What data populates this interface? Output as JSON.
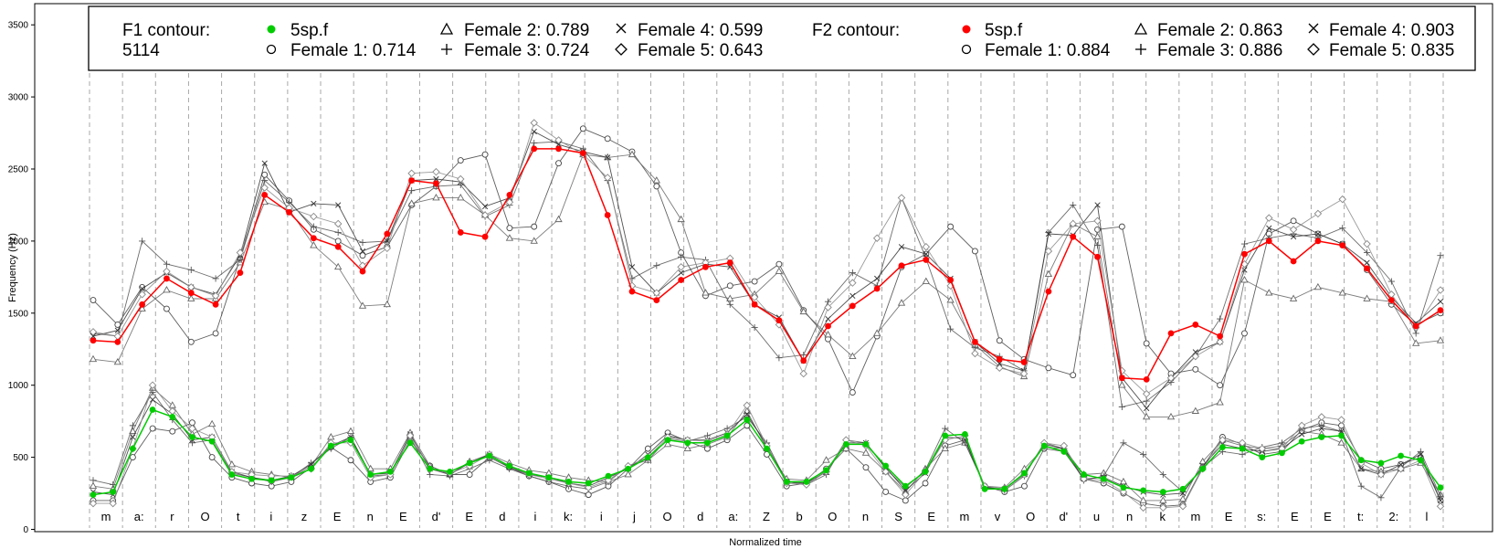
{
  "chart_data": {
    "type": "line",
    "xlabel": "Normalized time",
    "ylabel": "Frequency (Hz)",
    "ylim": [
      0,
      3600
    ],
    "yticks": [
      0,
      500,
      1000,
      1500,
      2000,
      2500,
      3000,
      3500
    ],
    "grid": "vertical dashed segment boundaries",
    "legend_position": "top",
    "segments": [
      "m",
      "a:",
      "r",
      "O",
      "t",
      "i",
      "z",
      "E",
      "n",
      "E",
      "d'",
      "E",
      "d",
      "i",
      "k:",
      "i",
      "j",
      "O",
      "d",
      "a:",
      "Z",
      "b",
      "O",
      "n",
      "S",
      "E",
      "m",
      "v",
      "O",
      "d'",
      "u",
      "n",
      "k",
      "m",
      "E",
      "s:",
      "E",
      "E",
      "t:",
      "2:",
      "l"
    ],
    "legend": {
      "f1_title": "F1 contour:",
      "f1_subtitle": "5114",
      "f1_entries": [
        {
          "marker": "filled-circle-green",
          "label": "5sp.f"
        },
        {
          "marker": "triangle",
          "label": "Female 2: 0.789"
        },
        {
          "marker": "x",
          "label": "Female 4: 0.599"
        },
        {
          "marker": "circle",
          "label": "Female 1: 0.714"
        },
        {
          "marker": "plus",
          "label": "Female 3: 0.724"
        },
        {
          "marker": "diamond",
          "label": "Female 5: 0.643"
        }
      ],
      "f2_title": "F2 contour:",
      "f2_entries": [
        {
          "marker": "filled-circle-red",
          "label": "5sp.f"
        },
        {
          "marker": "triangle",
          "label": "Female 2: 0.863"
        },
        {
          "marker": "x",
          "label": "Female 4: 0.903"
        },
        {
          "marker": "circle",
          "label": "Female 1: 0.884"
        },
        {
          "marker": "plus",
          "label": "Female 3: 0.886"
        },
        {
          "marker": "diamond",
          "label": "Female 5: 0.835"
        }
      ]
    },
    "series": [
      {
        "name": "F2 5sp.f",
        "color": "#ff0000",
        "values": [
          1310,
          1300,
          1560,
          1740,
          1640,
          1560,
          1780,
          2320,
          2200,
          2020,
          1960,
          1790,
          2050,
          2420,
          2400,
          2060,
          2030,
          2320,
          2640,
          2640,
          2610,
          2180,
          1650,
          1590,
          1730,
          1820,
          1850,
          1560,
          1450,
          1170,
          1410,
          1550,
          1670,
          1830,
          1870,
          1730,
          1300,
          1180,
          1160,
          1650,
          2030,
          1890,
          1050,
          1040,
          1360,
          1420,
          1340,
          1910,
          2000,
          1860,
          2000,
          1970,
          1810,
          1590,
          1410,
          1520
        ]
      },
      {
        "name": "F1 5sp.f",
        "color": "#00cc00",
        "values": [
          240,
          260,
          560,
          830,
          780,
          640,
          610,
          380,
          350,
          340,
          360,
          420,
          580,
          620,
          380,
          400,
          600,
          420,
          400,
          460,
          510,
          440,
          390,
          360,
          330,
          320,
          370,
          420,
          500,
          620,
          600,
          600,
          650,
          760,
          560,
          330,
          330,
          410,
          590,
          590,
          440,
          300,
          400,
          650,
          660,
          280,
          280,
          390,
          580,
          540,
          380,
          350,
          290,
          270,
          260,
          280,
          420,
          570,
          560,
          500,
          530,
          610,
          640,
          650,
          480,
          460,
          510,
          480,
          290
        ]
      },
      {
        "name": "F2 Female 1",
        "color": "#444444",
        "values": [
          1590,
          1420,
          1680,
          1530,
          1300,
          1360,
          1880,
          2460,
          2280,
          2080,
          2000,
          1900,
          1960,
          2250,
          2380,
          2560,
          2600,
          2090,
          2100,
          2540,
          2780,
          2710,
          2620,
          2380,
          1920,
          1620,
          1690,
          1720,
          1840,
          1520,
          1320,
          950,
          1340,
          1820,
          1910,
          2100,
          1930,
          1310,
          1180,
          1120,
          1070,
          2080,
          2100,
          1290,
          1080,
          1110,
          1000,
          1360,
          2050,
          2140,
          2050,
          1980,
          1800,
          1560,
          1420,
          1500
        ]
      },
      {
        "name": "F2 Female 2",
        "color": "#666666",
        "values": [
          1180,
          1160,
          1530,
          1660,
          1600,
          1600,
          1850,
          2270,
          2220,
          1970,
          1820,
          1550,
          1560,
          2260,
          2300,
          2300,
          2180,
          2020,
          2000,
          2150,
          2600,
          2580,
          2600,
          2420,
          2150,
          1640,
          1600,
          1630,
          1790,
          1510,
          1350,
          1200,
          1360,
          1570,
          1720,
          1590,
          1280,
          1130,
          1060,
          1770,
          2120,
          2030,
          1000,
          780,
          780,
          820,
          880,
          1730,
          1640,
          1600,
          1680,
          1640,
          1600,
          1580,
          1290,
          1310
        ]
      },
      {
        "name": "F2 Female 3",
        "color": "#555555",
        "values": [
          1360,
          1340,
          2000,
          1840,
          1800,
          1740,
          1870,
          2420,
          2270,
          2100,
          2060,
          1990,
          2000,
          2350,
          2380,
          2390,
          2170,
          2250,
          2680,
          2690,
          2640,
          2420,
          1740,
          1830,
          1890,
          1870,
          1560,
          1400,
          1190,
          1210,
          1580,
          1780,
          1690,
          2300,
          1880,
          1390,
          1260,
          1200,
          1100,
          2060,
          2250,
          1970,
          850,
          890,
          1020,
          1200,
          1460,
          1980,
          2020,
          2050,
          2020,
          2090,
          1920,
          1720,
          1360,
          1900
        ]
      },
      {
        "name": "F2 Female 4",
        "color": "#333333",
        "values": [
          1340,
          1380,
          1670,
          1780,
          1680,
          1630,
          1900,
          2540,
          2200,
          2260,
          2250,
          1930,
          2000,
          2420,
          2430,
          2410,
          2240,
          2300,
          2760,
          2670,
          2620,
          2580,
          1820,
          1640,
          1780,
          1840,
          1820,
          1560,
          1470,
          1170,
          1460,
          1620,
          1740,
          1960,
          1910,
          1740,
          1300,
          1150,
          1100,
          2050,
          2040,
          2250,
          1050,
          840,
          1050,
          1230,
          1300,
          1800,
          2090,
          2030,
          2050,
          1980,
          1850,
          1610,
          1430,
          1580
        ]
      },
      {
        "name": "F2 Female 5",
        "color": "#888888",
        "values": [
          1370,
          1340,
          1630,
          1790,
          1680,
          1620,
          1920,
          2370,
          2230,
          2170,
          2120,
          1830,
          1950,
          2470,
          2480,
          2430,
          2180,
          2270,
          2820,
          2700,
          2600,
          2440,
          1690,
          1640,
          1820,
          1850,
          1880,
          1610,
          1420,
          1080,
          1540,
          1710,
          2020,
          2300,
          1960,
          1690,
          1220,
          1120,
          1080,
          1930,
          2120,
          2140,
          1100,
          940,
          1050,
          1200,
          1300,
          1840,
          2160,
          2080,
          2190,
          2290,
          1980,
          1630,
          1400,
          1660
        ]
      },
      {
        "name": "F1 Female 1",
        "color": "#444444",
        "values": [
          200,
          200,
          500,
          700,
          680,
          740,
          500,
          360,
          320,
          300,
          330,
          430,
          570,
          480,
          330,
          360,
          620,
          440,
          380,
          380,
          500,
          430,
          370,
          330,
          280,
          240,
          300,
          420,
          560,
          670,
          610,
          560,
          620,
          720,
          520,
          300,
          320,
          420,
          560,
          430,
          260,
          200,
          320,
          580,
          620,
          300,
          260,
          300,
          560,
          540,
          350,
          320,
          250,
          180,
          160,
          170,
          430,
          640,
          590,
          520,
          540,
          690,
          740,
          720,
          480,
          420,
          450,
          500,
          200
        ]
      },
      {
        "name": "F1 Female 2",
        "color": "#666666",
        "values": [
          300,
          280,
          680,
          980,
          860,
          660,
          730,
          450,
          400,
          380,
          360,
          440,
          640,
          680,
          420,
          420,
          670,
          440,
          380,
          470,
          520,
          460,
          410,
          390,
          360,
          340,
          330,
          380,
          480,
          590,
          560,
          590,
          640,
          820,
          560,
          350,
          340,
          480,
          560,
          530,
          400,
          260,
          420,
          560,
          600,
          300,
          290,
          420,
          570,
          560,
          380,
          390,
          330,
          200,
          200,
          210,
          470,
          620,
          580,
          560,
          580,
          680,
          660,
          600,
          420,
          400,
          420,
          460,
          240
        ]
      },
      {
        "name": "F1 Female 3",
        "color": "#555555",
        "values": [
          340,
          310,
          720,
          950,
          760,
          600,
          620,
          390,
          360,
          330,
          360,
          460,
          560,
          640,
          370,
          380,
          640,
          380,
          370,
          420,
          480,
          420,
          370,
          330,
          300,
          280,
          330,
          440,
          480,
          630,
          610,
          650,
          700,
          780,
          600,
          330,
          310,
          380,
          620,
          600,
          420,
          290,
          410,
          700,
          600,
          300,
          270,
          370,
          600,
          560,
          340,
          370,
          600,
          520,
          380,
          260,
          430,
          540,
          520,
          570,
          600,
          700,
          720,
          680,
          300,
          220,
          430,
          540,
          230
        ]
      },
      {
        "name": "F1 Female 4",
        "color": "#333333",
        "values": [
          260,
          240,
          640,
          900,
          800,
          620,
          640,
          400,
          360,
          340,
          370,
          450,
          580,
          640,
          380,
          390,
          660,
          420,
          380,
          460,
          520,
          430,
          380,
          360,
          320,
          300,
          360,
          420,
          520,
          650,
          620,
          620,
          670,
          800,
          580,
          330,
          320,
          400,
          600,
          600,
          430,
          270,
          390,
          640,
          630,
          290,
          280,
          380,
          590,
          560,
          350,
          360,
          300,
          260,
          240,
          250,
          440,
          590,
          560,
          540,
          560,
          660,
          700,
          680,
          420,
          380,
          450,
          520,
          200
        ]
      },
      {
        "name": "F1 Female 5",
        "color": "#888888",
        "values": [
          180,
          180,
          560,
          1000,
          820,
          700,
          640,
          400,
          380,
          370,
          370,
          420,
          600,
          600,
          360,
          380,
          650,
          420,
          390,
          440,
          520,
          440,
          380,
          350,
          320,
          290,
          340,
          440,
          500,
          640,
          620,
          610,
          660,
          860,
          580,
          320,
          310,
          400,
          620,
          580,
          400,
          240,
          400,
          620,
          650,
          300,
          280,
          380,
          600,
          580,
          350,
          340,
          260,
          150,
          150,
          160,
          420,
          620,
          600,
          560,
          560,
          720,
          780,
          760,
          460,
          380,
          420,
          480,
          160
        ]
      }
    ]
  }
}
